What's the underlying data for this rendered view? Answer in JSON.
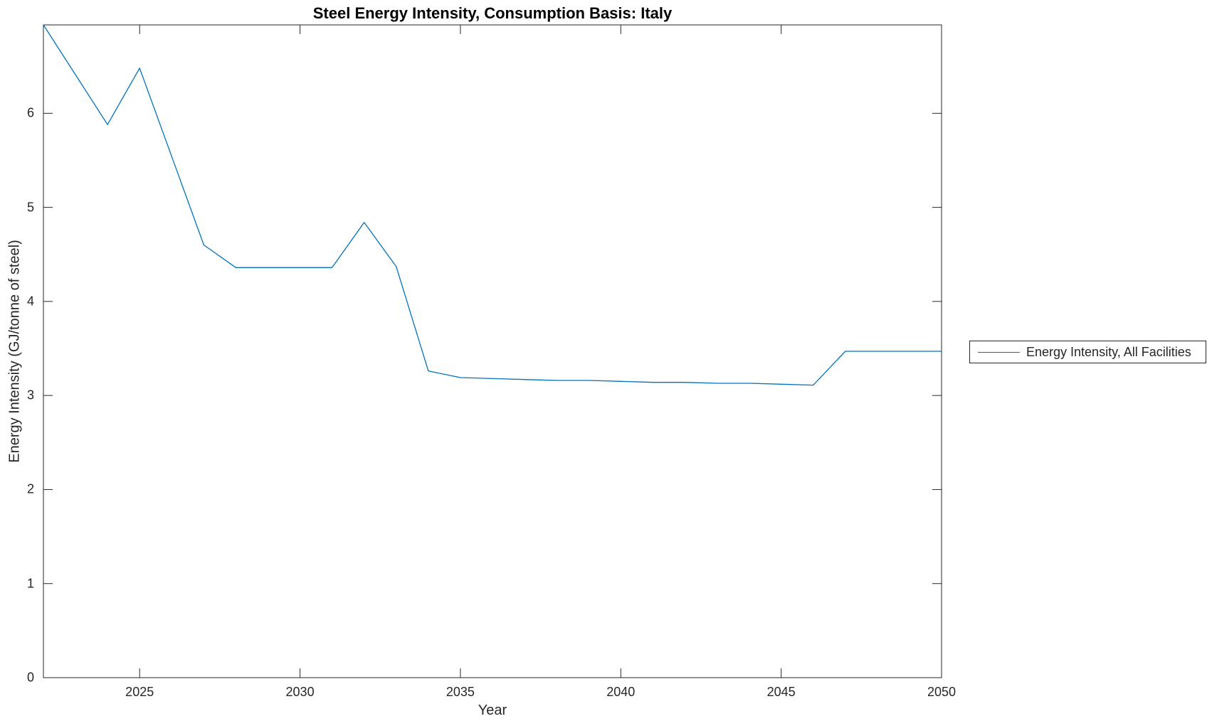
{
  "chart_data": {
    "type": "line",
    "title": "Steel Energy Intensity, Consumption Basis: Italy",
    "xlabel": "Year",
    "ylabel": "Energy Intensity (GJ/tonne of steel)",
    "xlim": [
      2022,
      2050
    ],
    "ylim": [
      0,
      6.94
    ],
    "xticks": [
      2025,
      2030,
      2035,
      2040,
      2045,
      2050
    ],
    "yticks": [
      0,
      1,
      2,
      3,
      4,
      5,
      6
    ],
    "grid": false,
    "legend_position": "right-outside",
    "axis_color": "#262626",
    "series": [
      {
        "name": "Energy Intensity, All Facilities",
        "color": "#0072BD",
        "x": [
          2022,
          2023,
          2024,
          2025,
          2026,
          2027,
          2028,
          2029,
          2030,
          2031,
          2032,
          2033,
          2034,
          2035,
          2036,
          2037,
          2038,
          2039,
          2040,
          2041,
          2042,
          2043,
          2044,
          2045,
          2046,
          2047,
          2048,
          2049,
          2050
        ],
        "values": [
          6.94,
          6.41,
          5.88,
          6.48,
          5.54,
          4.6,
          4.36,
          4.36,
          4.36,
          4.36,
          4.84,
          4.37,
          3.26,
          3.19,
          3.18,
          3.17,
          3.16,
          3.16,
          3.15,
          3.14,
          3.14,
          3.13,
          3.13,
          3.12,
          3.11,
          3.47,
          3.47,
          3.47,
          3.47
        ]
      }
    ]
  }
}
